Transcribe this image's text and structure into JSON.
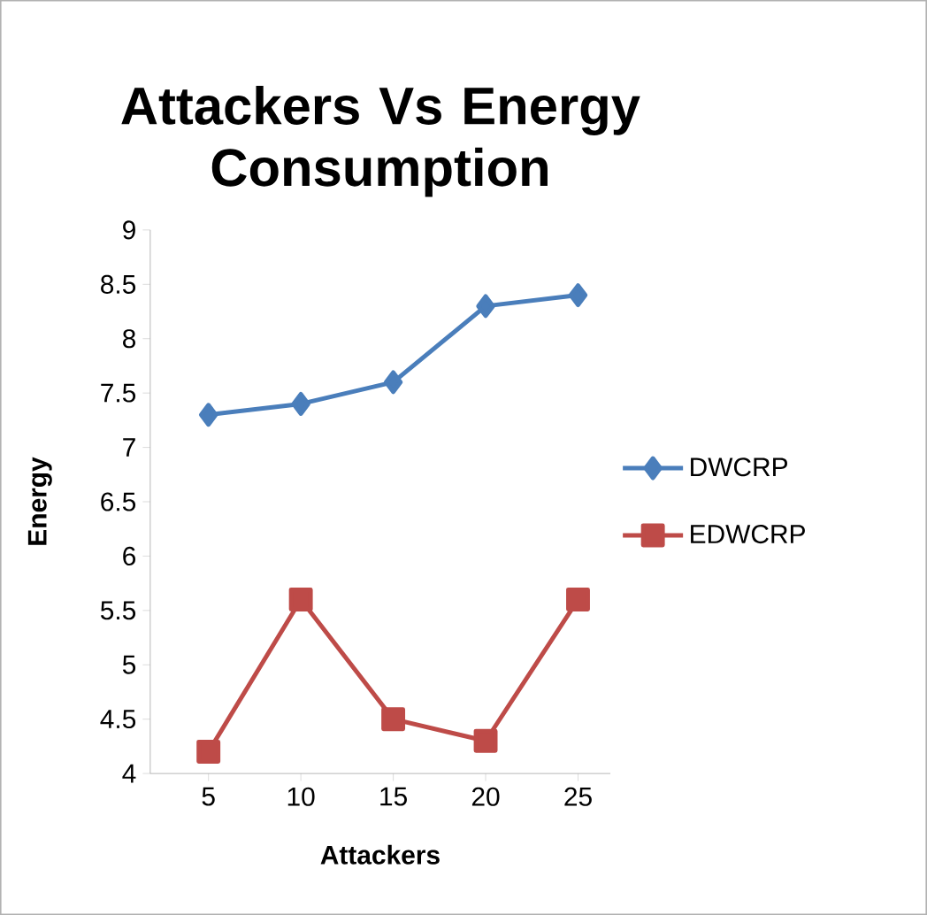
{
  "chart_data": {
    "type": "line",
    "title": "Attackers Vs Energy Consumption",
    "xlabel": "Attackers",
    "ylabel": "Energy",
    "categories": [
      "5",
      "10",
      "15",
      "20",
      "25"
    ],
    "series": [
      {
        "name": "DWCRP",
        "color": "#4a7ebb",
        "marker": "diamond",
        "values": [
          7.3,
          7.4,
          7.6,
          8.3,
          8.4
        ]
      },
      {
        "name": "EDWCRP",
        "color": "#be4b48",
        "marker": "square",
        "values": [
          4.2,
          5.6,
          4.5,
          4.3,
          5.6
        ]
      }
    ],
    "ylim": [
      4,
      9
    ],
    "yticks": [
      4,
      4.5,
      5,
      5.5,
      6,
      6.5,
      7,
      7.5,
      8,
      8.5,
      9
    ],
    "grid": false,
    "legend": "right"
  }
}
